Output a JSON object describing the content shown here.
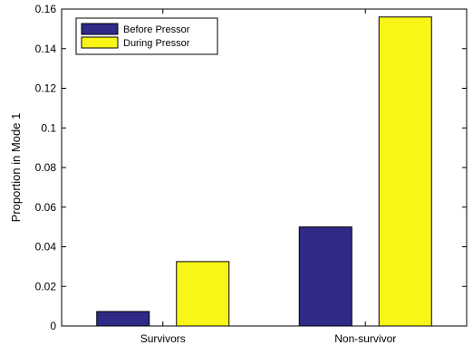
{
  "chart_data": {
    "type": "bar",
    "categories": [
      "Survivors",
      "Non-survivor"
    ],
    "series": [
      {
        "name": "Before Pressor",
        "values": [
          0.0073,
          0.05
        ],
        "color": "#2e2a86"
      },
      {
        "name": "During Pressor",
        "values": [
          0.0325,
          0.156
        ],
        "color": "#f8f517"
      }
    ],
    "title": "",
    "xlabel": "",
    "ylabel": "Proportion in Mode 1",
    "ylim": [
      0,
      0.16
    ],
    "yticks": [
      0,
      0.02,
      0.04,
      0.06,
      0.08,
      0.1,
      0.12,
      0.14,
      0.16
    ],
    "ytick_labels": [
      "0",
      "0.02",
      "0.04",
      "0.06",
      "0.08",
      "0.1",
      "0.12",
      "0.14",
      "0.16"
    ],
    "grid": false,
    "legend_position": "top-left"
  }
}
